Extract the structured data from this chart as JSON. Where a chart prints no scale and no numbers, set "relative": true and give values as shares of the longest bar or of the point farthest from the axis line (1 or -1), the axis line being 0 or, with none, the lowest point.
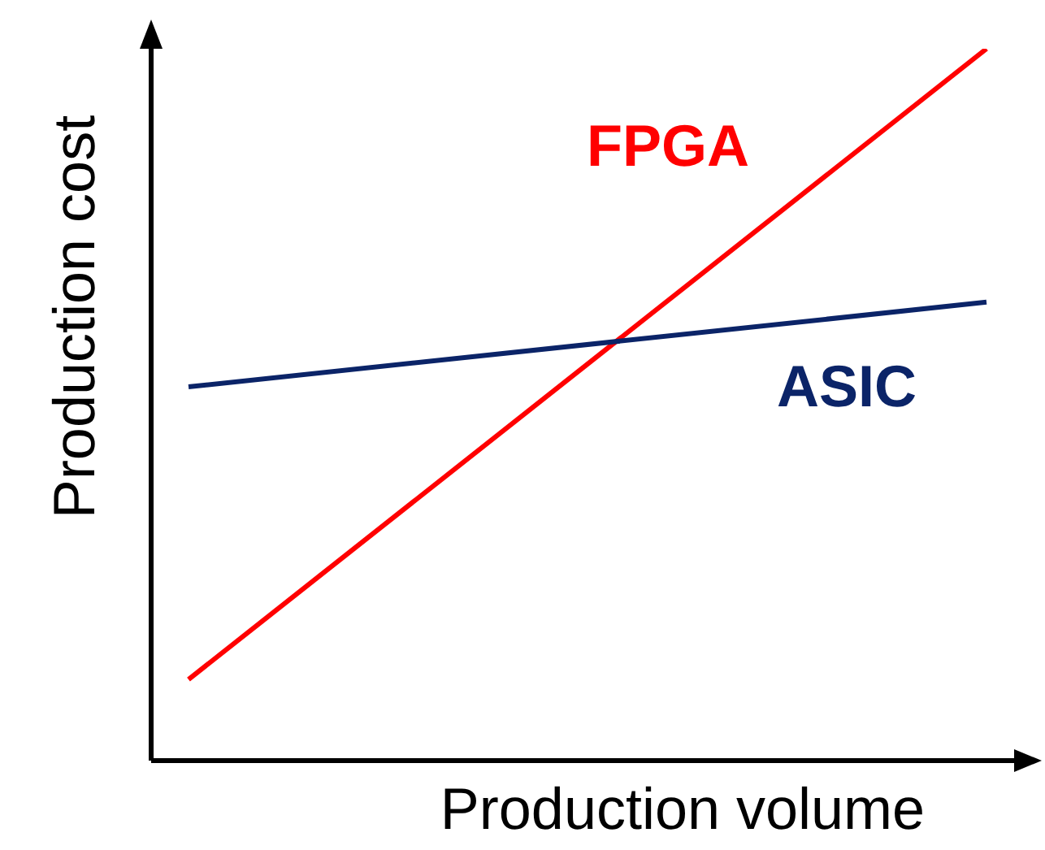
{
  "chart_data": {
    "type": "line",
    "relative": true,
    "xlabel": "Production volume",
    "ylabel": "Production cost",
    "categories": [
      null,
      null
    ],
    "series": [
      {
        "name": "FPGA",
        "color": "#ff0000",
        "values": [
          0.114,
          1
        ]
      },
      {
        "name": "ASIC",
        "color": "#0b2468",
        "values": [
          0.525,
          0.644
        ]
      }
    ],
    "marker": "none",
    "line_style": "solid",
    "grid": false,
    "legend": false
  }
}
